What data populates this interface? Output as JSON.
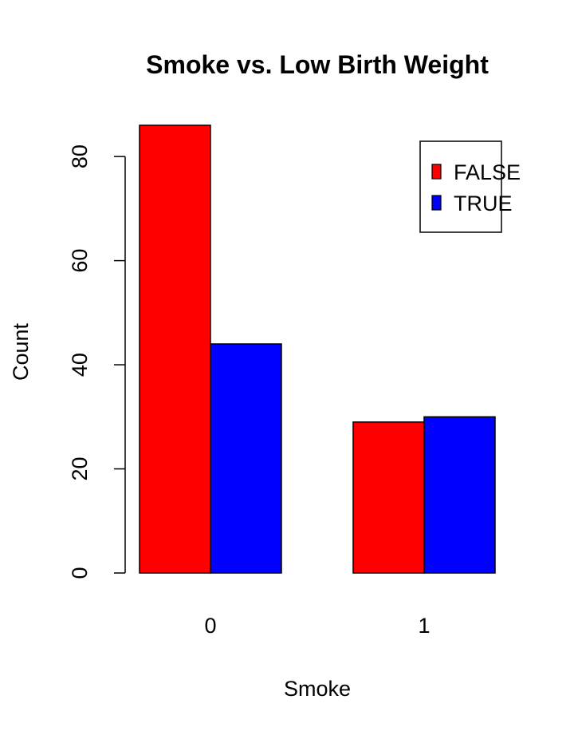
{
  "chart_data": {
    "type": "bar",
    "title": "Smoke vs. Low Birth Weight",
    "xlabel": "Smoke",
    "ylabel": "Count",
    "categories": [
      "0",
      "1"
    ],
    "series": [
      {
        "name": "FALSE",
        "values": [
          86,
          29
        ],
        "color": "#ff0000"
      },
      {
        "name": "TRUE",
        "values": [
          44,
          30
        ],
        "color": "#0000ff"
      }
    ],
    "ylim": [
      0,
      86
    ],
    "yticks": [
      "0",
      "20",
      "40",
      "60",
      "80"
    ],
    "grid": false,
    "legend_position": "top-right"
  }
}
